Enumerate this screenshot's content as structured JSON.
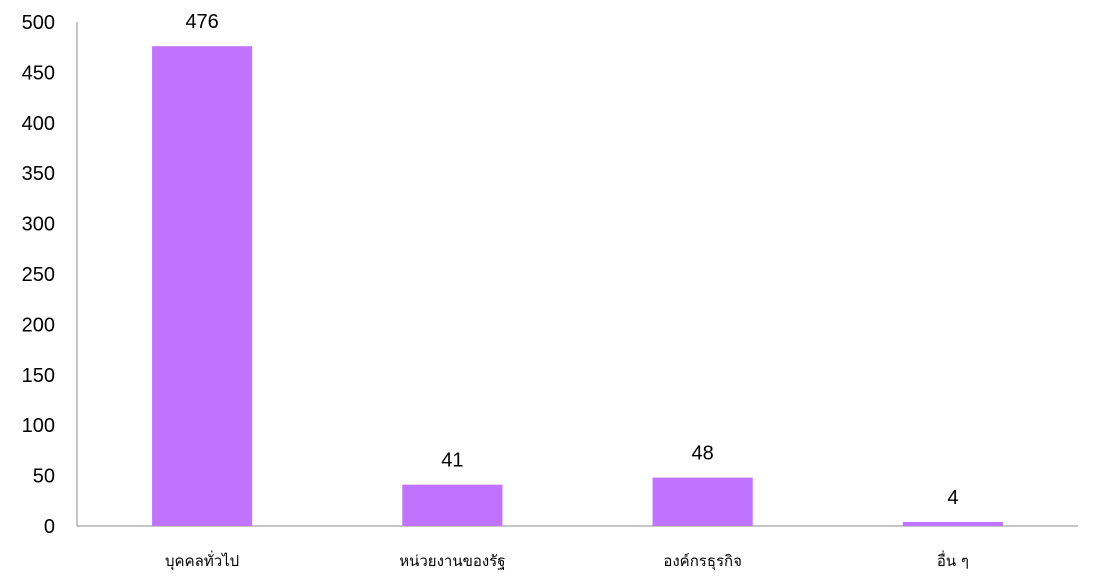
{
  "chart_data": {
    "type": "bar",
    "categories": [
      "บุคคลทั่วไป",
      "หน่วยงานของรัฐ",
      "องค์กรธุรกิจ",
      "อื่น ๆ"
    ],
    "values": [
      476,
      41,
      48,
      4
    ],
    "data_labels": [
      "476",
      "41",
      "48",
      "4"
    ],
    "ylim": [
      0,
      500
    ],
    "yticks": [
      "0",
      "50",
      "100",
      "150",
      "200",
      "250",
      "300",
      "350",
      "400",
      "450",
      "500"
    ],
    "grid": false,
    "legend": "none",
    "bar_color": "#bf73ff"
  }
}
